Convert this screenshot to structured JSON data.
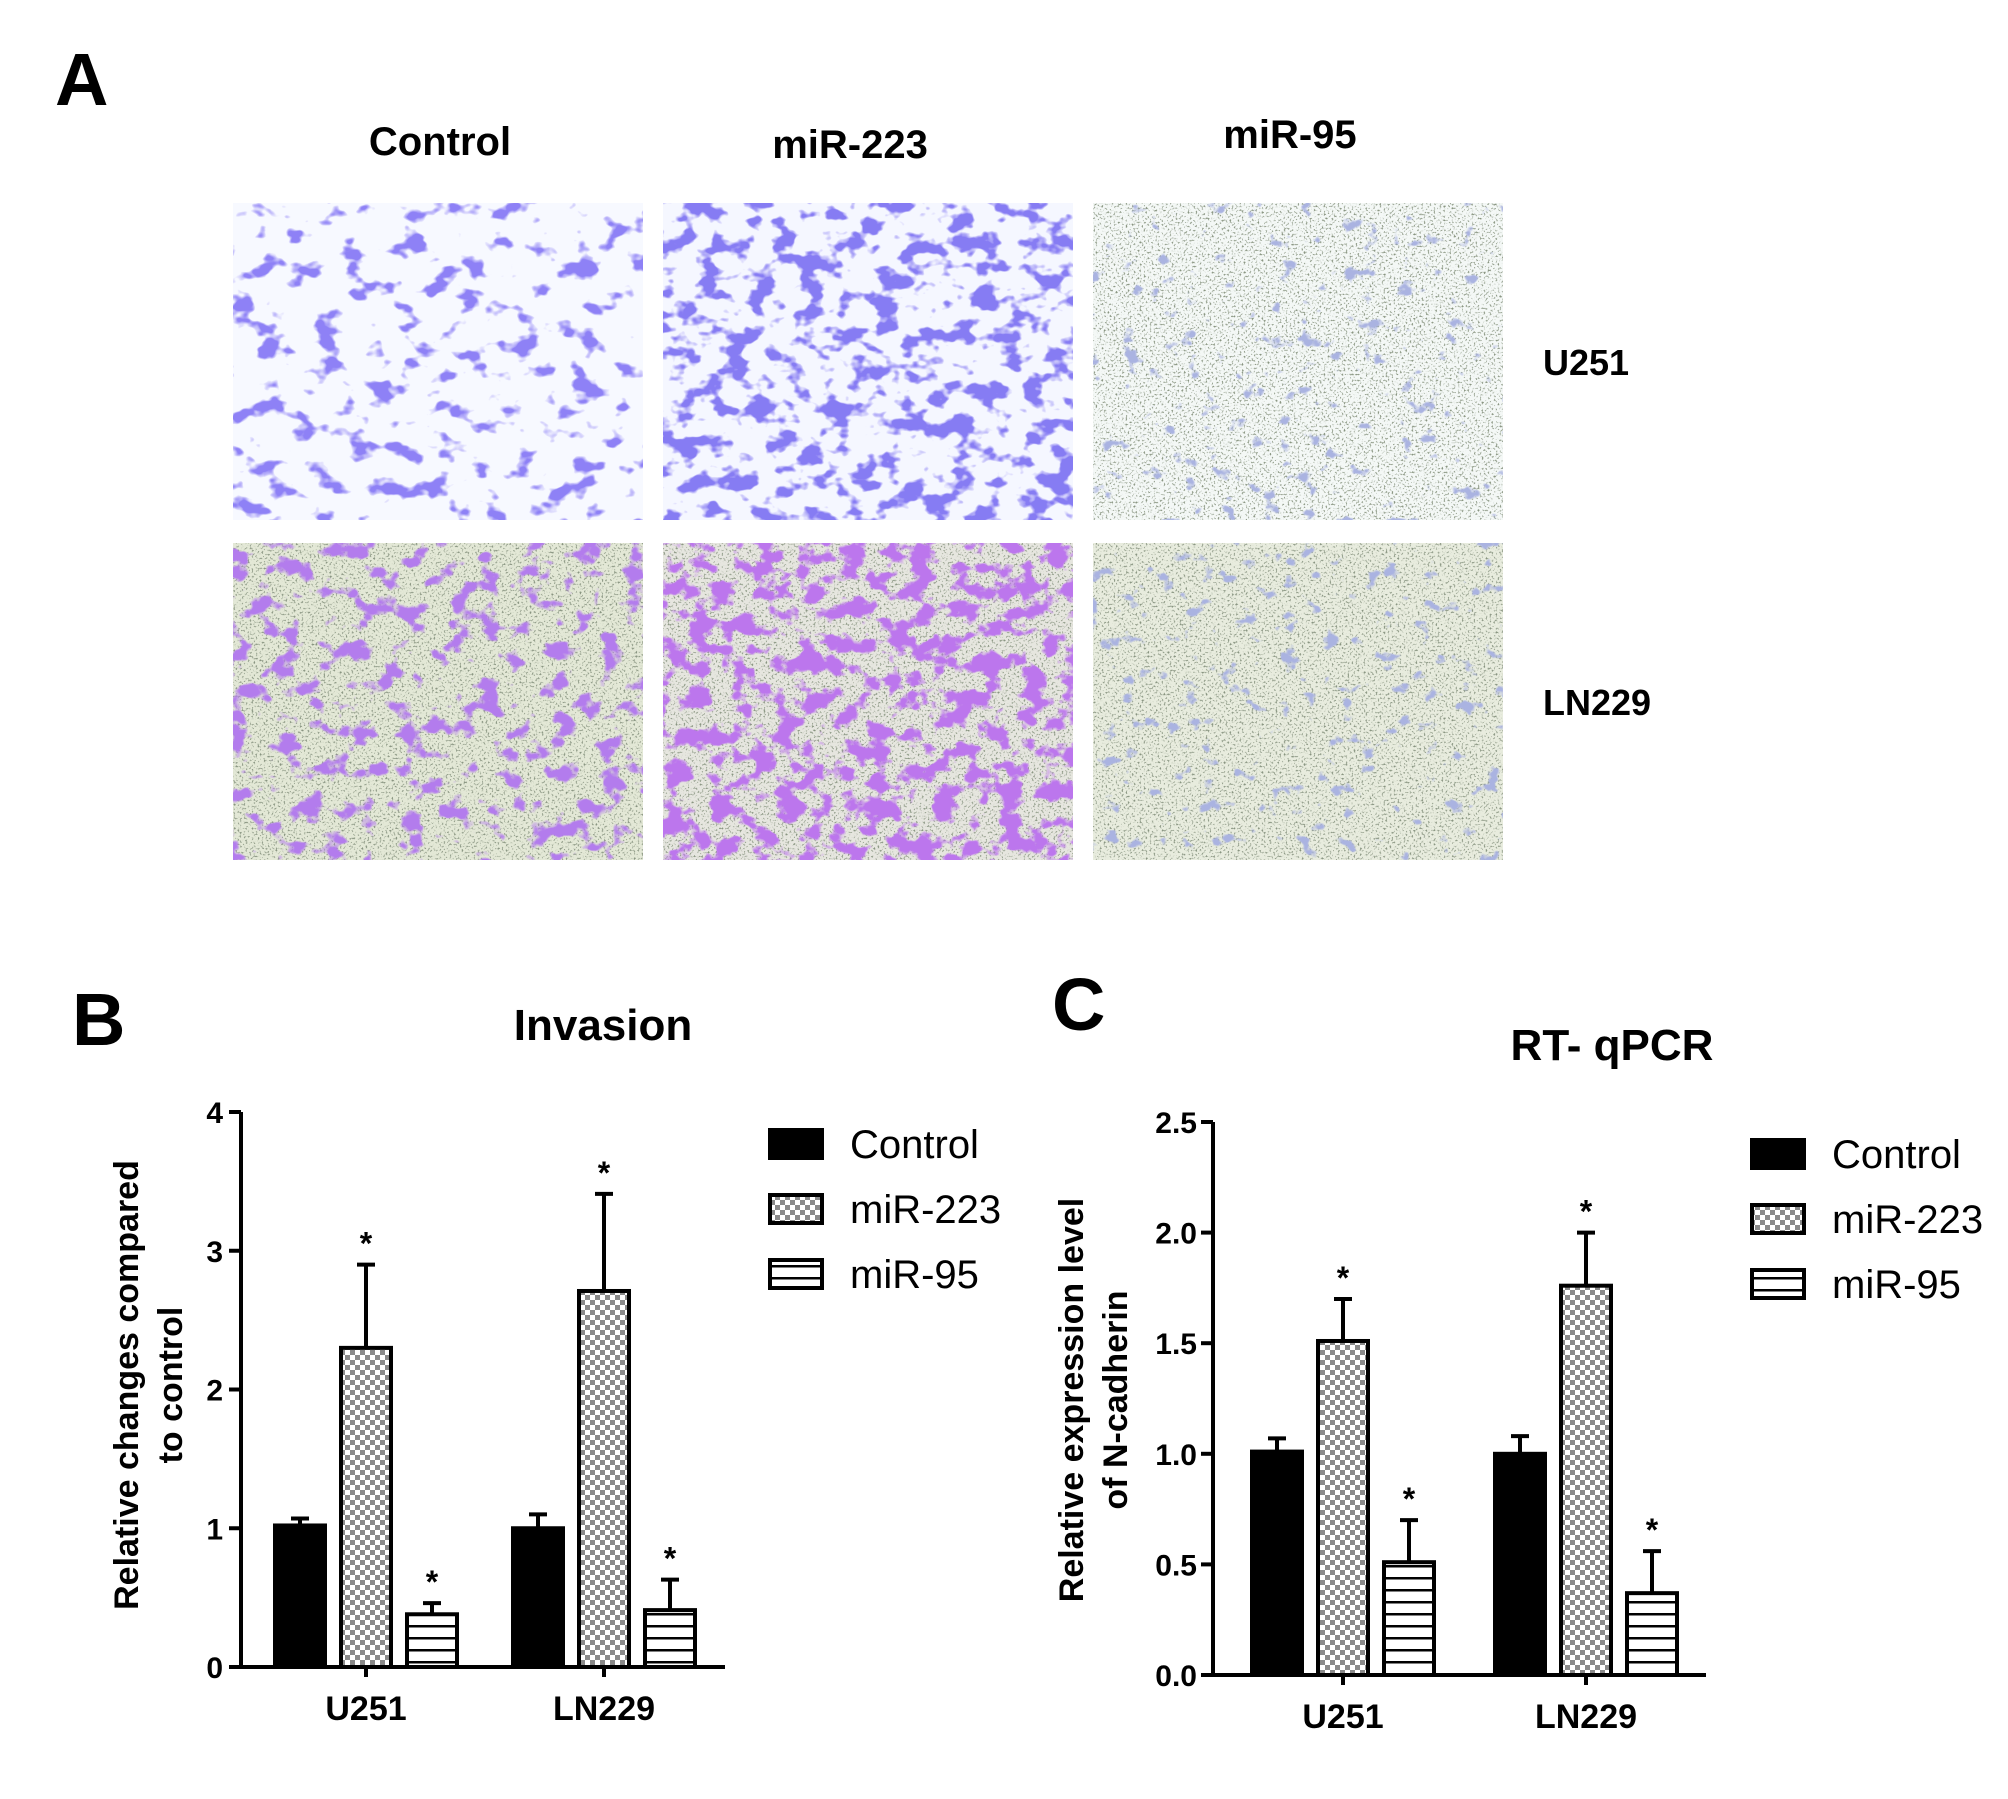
{
  "panel_a": {
    "letter": "A",
    "columns": [
      "Control",
      "miR-223",
      "miR-95"
    ],
    "rows": [
      "U251",
      "LN229"
    ]
  },
  "chart_data": [
    {
      "type": "bar",
      "panel": "B",
      "title": "Invasion",
      "ylabel": "Relative changes compared to control",
      "ylabel_lines": [
        "Relative changes compared",
        "to control"
      ],
      "xlabel": "",
      "categories": [
        "U251",
        "LN229"
      ],
      "ylim": [
        0,
        4
      ],
      "yticks": [
        0,
        1,
        2,
        3,
        4
      ],
      "ytick_labels": [
        "0",
        "1",
        "2",
        "3",
        "4"
      ],
      "legend": "top-right",
      "series": [
        {
          "name": "Control",
          "pattern": "solid",
          "values": [
            1.02,
            1.0
          ],
          "errors": [
            0.05,
            0.1
          ],
          "significant": [
            false,
            false
          ]
        },
        {
          "name": "miR-223",
          "pattern": "checker",
          "values": [
            2.3,
            2.71
          ],
          "errors": [
            0.6,
            0.7
          ],
          "significant": [
            true,
            true
          ]
        },
        {
          "name": "miR-95",
          "pattern": "hstripe",
          "values": [
            0.38,
            0.41
          ],
          "errors": [
            0.08,
            0.22
          ],
          "significant": [
            true,
            true
          ]
        }
      ],
      "annotation": "*"
    },
    {
      "type": "bar",
      "panel": "C",
      "title": "RT- qPCR",
      "ylabel": "Relative expression level of N-cadherin",
      "ylabel_lines": [
        "Relative expression level",
        "of N-cadherin"
      ],
      "xlabel": "",
      "categories": [
        "U251",
        "LN229"
      ],
      "ylim": [
        0,
        2.5
      ],
      "yticks": [
        0,
        0.5,
        1,
        1.5,
        2,
        2.5
      ],
      "ytick_labels": [
        "0.0",
        "0.5",
        "1.0",
        "1.5",
        "2.0",
        "2.5"
      ],
      "legend": "top-right",
      "series": [
        {
          "name": "Control",
          "pattern": "solid",
          "values": [
            1.01,
            1.0
          ],
          "errors": [
            0.06,
            0.08
          ],
          "significant": [
            false,
            false
          ]
        },
        {
          "name": "miR-223",
          "pattern": "checker",
          "values": [
            1.51,
            1.76
          ],
          "errors": [
            0.19,
            0.24
          ],
          "significant": [
            true,
            true
          ]
        },
        {
          "name": "miR-95",
          "pattern": "hstripe",
          "values": [
            0.51,
            0.37
          ],
          "errors": [
            0.19,
            0.19
          ],
          "significant": [
            true,
            true
          ]
        }
      ],
      "annotation": "*"
    }
  ]
}
